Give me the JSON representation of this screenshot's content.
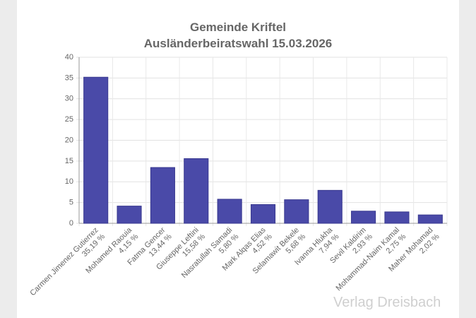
{
  "chart_data": {
    "type": "bar",
    "title": "Gemeinde Kriftel",
    "subtitle": "Ausländerbeiratswahl 15.03.2026",
    "categories": [
      "Carmen Jimenez Gutierrez",
      "Mohamed Raouia",
      "Fatma Gencer",
      "Giuseppe Leftini",
      "Nasratullah Samadi",
      "Mark Alqas Elias",
      "Selamawit Bekele",
      "Ivanna Hlukha",
      "Sevil Kaldirim",
      "Mohammad-Naim Kamal",
      "Maher Mohamad"
    ],
    "values": [
      35.19,
      4.15,
      13.44,
      15.58,
      5.8,
      4.52,
      5.68,
      7.94,
      2.93,
      2.75,
      2.02
    ],
    "value_labels": [
      "35,19 %",
      "4,15 %",
      "13,44 %",
      "15,58 %",
      "5,80 %",
      "4,52 %",
      "5,68 %",
      "7,94 %",
      "2,93 %",
      "2,75 %",
      "2,02 %"
    ],
    "color": "#4a4aa8",
    "ylim": [
      0,
      40
    ],
    "yticks": [
      0,
      5,
      10,
      15,
      20,
      25,
      30,
      35,
      40
    ],
    "grid": true,
    "watermark": "Verlag Dreisbach"
  }
}
